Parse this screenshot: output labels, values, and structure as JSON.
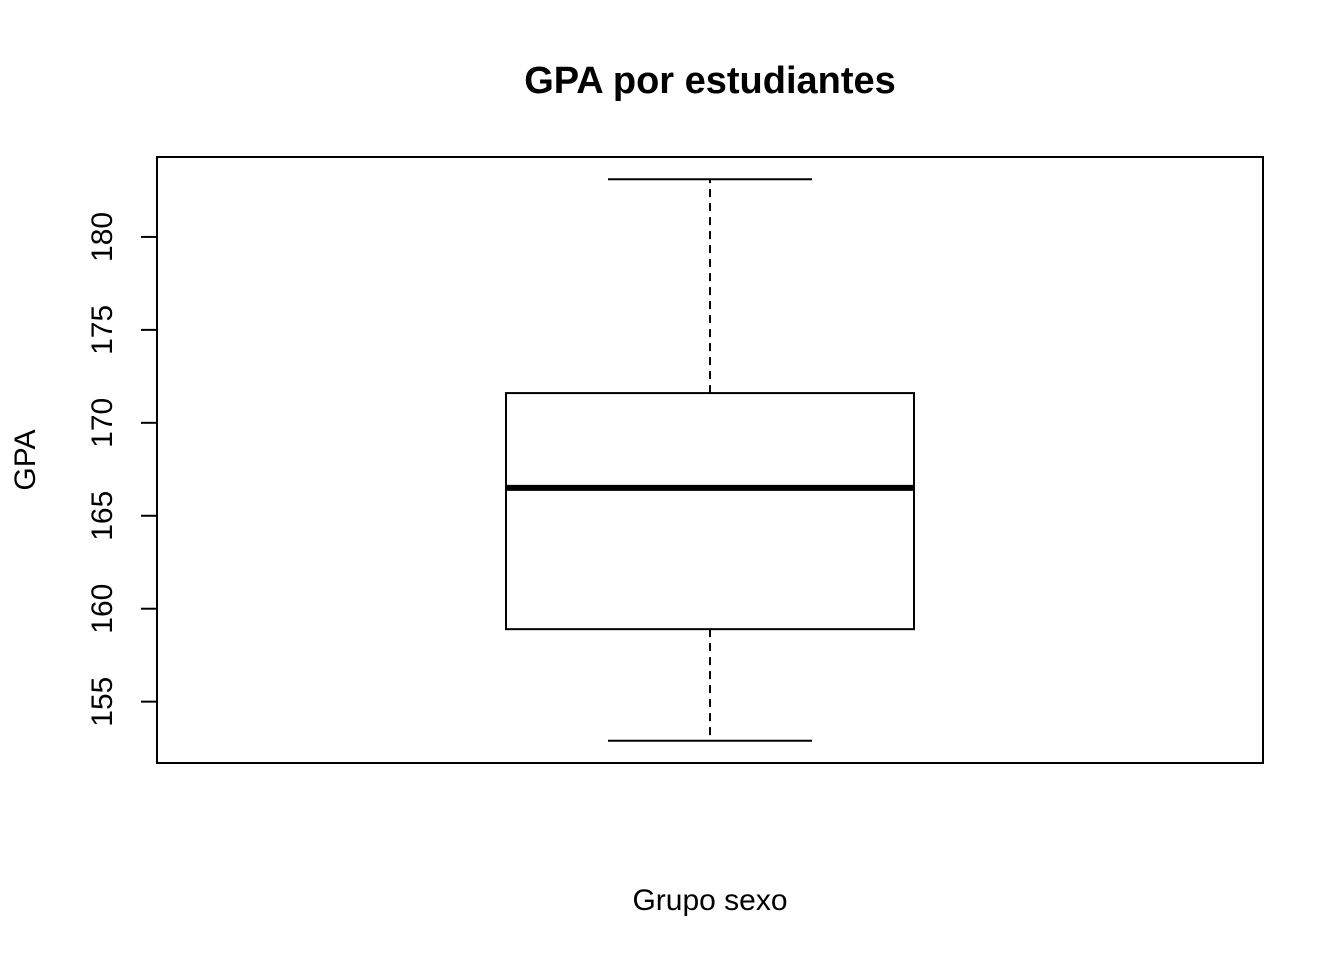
{
  "chart_data": {
    "type": "boxplot",
    "title": "GPA por estudiantes",
    "xlabel": "Grupo sexo",
    "ylabel": "GPA",
    "ylim": [
      151.7,
      184.3
    ],
    "yticks": [
      155,
      160,
      165,
      170,
      175,
      180
    ],
    "grid": false,
    "legend": "none",
    "box": {
      "min": 152.9,
      "q1": 158.9,
      "median": 166.5,
      "q3": 171.6,
      "max": 183.1
    },
    "colors": {
      "stroke": "#000000",
      "fill": "#ffffff"
    }
  }
}
